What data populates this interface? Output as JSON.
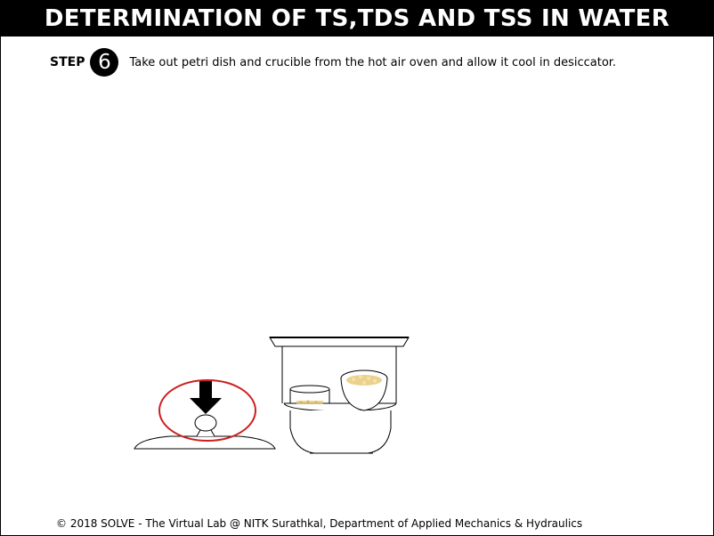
{
  "header": {
    "title": "DETERMINATION OF TS,TDS AND TSS IN WATER"
  },
  "step": {
    "label": "STEP",
    "number": "6",
    "instruction": "Take out petri dish and crucible from the hot air oven and allow it cool in desiccator."
  },
  "footer": {
    "text": "© 2018 SOLVE - The Virtual Lab @ NITK Surathkal, Department of Applied Mechanics & Hydraulics"
  },
  "colors": {
    "highlight_ring": "#cc1f1f",
    "sample_residue": "#e8c97a"
  }
}
